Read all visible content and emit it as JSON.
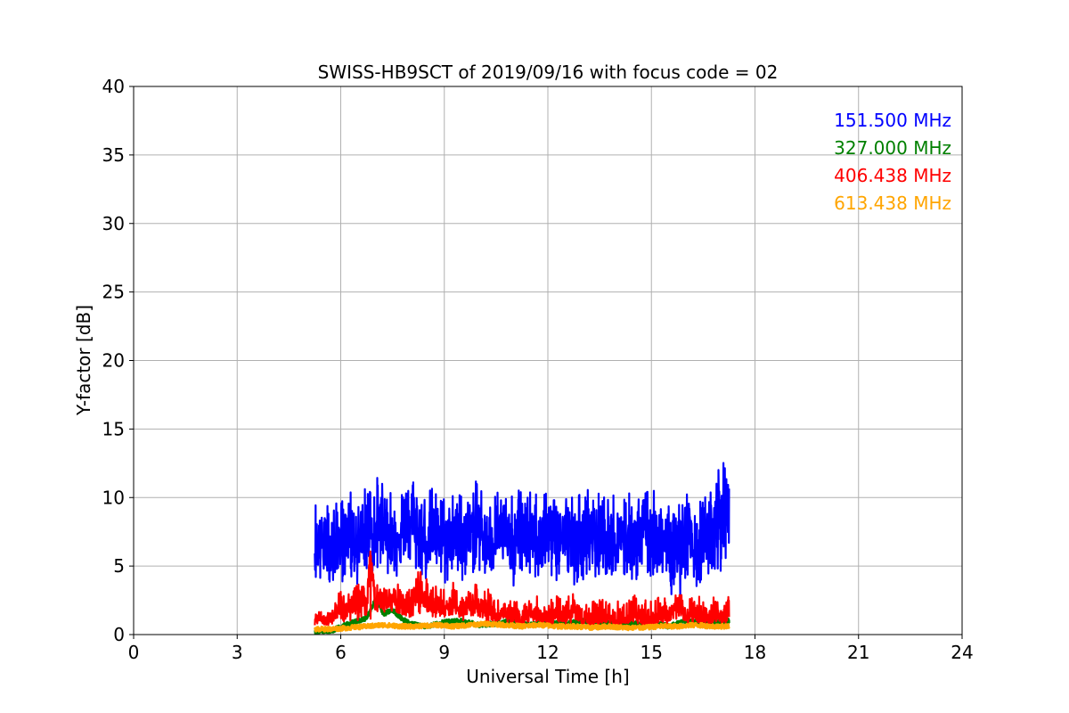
{
  "chart_data": {
    "type": "line",
    "title": "SWISS-HB9SCT of 2019/09/16 with focus code = 02",
    "xlabel": "Universal Time [h]",
    "ylabel": "Y-factor [dB]",
    "xlim": [
      0,
      24
    ],
    "ylim": [
      0,
      40
    ],
    "xticks": [
      0,
      3,
      6,
      9,
      12,
      15,
      18,
      21,
      24
    ],
    "yticks": [
      0,
      5,
      10,
      15,
      20,
      25,
      30,
      35,
      40
    ],
    "xtick_labels": [
      "0",
      "3",
      "6",
      "9",
      "12",
      "15",
      "18",
      "21",
      "24"
    ],
    "ytick_labels": [
      "0",
      "5",
      "10",
      "15",
      "20",
      "25",
      "30",
      "35",
      "40"
    ],
    "grid": true,
    "legend_position": "top-right",
    "series": [
      {
        "name": "151.500 MHz",
        "color": "#0000ff",
        "x": [
          5.25,
          5.5,
          5.75,
          6.0,
          6.25,
          6.5,
          6.75,
          7.0,
          7.25,
          7.5,
          7.75,
          8.0,
          8.25,
          8.5,
          8.75,
          9.0,
          9.25,
          9.5,
          9.75,
          10.0,
          10.25,
          10.5,
          10.75,
          11.0,
          11.25,
          11.5,
          11.75,
          12.0,
          12.25,
          12.5,
          12.75,
          13.0,
          13.25,
          13.5,
          13.75,
          14.0,
          14.25,
          14.5,
          14.75,
          15.0,
          15.25,
          15.5,
          15.75,
          16.0,
          16.25,
          16.5,
          16.75,
          17.0,
          17.25
        ],
        "y": [
          6.5,
          7.0,
          6.2,
          6.8,
          7.5,
          6.4,
          7.8,
          7.2,
          8.0,
          6.9,
          7.4,
          8.5,
          7.0,
          6.8,
          7.3,
          6.6,
          7.1,
          6.9,
          7.6,
          7.8,
          6.7,
          7.2,
          7.0,
          6.4,
          7.5,
          6.9,
          7.1,
          7.4,
          6.8,
          7.2,
          6.6,
          7.0,
          7.3,
          6.8,
          6.5,
          7.1,
          7.0,
          6.7,
          7.4,
          7.0,
          6.8,
          6.5,
          6.0,
          7.2,
          5.8,
          6.6,
          7.2,
          8.5,
          9.0
        ],
        "y_upper": [
          10.0,
          9.8,
          9.5,
          9.8,
          10.5,
          9.9,
          11.0,
          11.5,
          11.8,
          10.6,
          11.0,
          13.3,
          10.8,
          10.5,
          11.0,
          10.2,
          10.8,
          10.5,
          11.0,
          11.3,
          10.2,
          10.8,
          10.6,
          10.0,
          11.2,
          10.4,
          10.6,
          11.0,
          10.3,
          10.8,
          10.2,
          10.5,
          10.9,
          10.4,
          10.0,
          10.7,
          10.5,
          10.3,
          11.0,
          10.6,
          10.4,
          10.0,
          11.0,
          10.8,
          9.5,
          10.2,
          10.6,
          13.2,
          12.6
        ],
        "y_lower": [
          3.5,
          3.4,
          3.2,
          3.8,
          4.0,
          3.6,
          4.2,
          4.4,
          4.6,
          4.0,
          4.3,
          5.0,
          4.2,
          3.9,
          4.3,
          3.6,
          4.0,
          3.8,
          4.4,
          4.6,
          3.8,
          4.2,
          4.0,
          3.4,
          4.4,
          3.9,
          4.1,
          4.3,
          3.8,
          4.2,
          3.6,
          4.0,
          4.3,
          3.8,
          3.5,
          4.1,
          4.0,
          3.7,
          4.4,
          4.0,
          3.8,
          3.4,
          1.8,
          3.9,
          3.0,
          3.6,
          4.2,
          4.6,
          5.0
        ]
      },
      {
        "name": "327.000 MHz",
        "color": "#008000",
        "x": [
          5.25,
          5.75,
          6.25,
          6.75,
          7.0,
          7.25,
          7.5,
          7.75,
          8.0,
          8.5,
          9.0,
          9.5,
          10.0,
          10.5,
          11.0,
          11.5,
          12.0,
          12.5,
          13.0,
          13.5,
          14.0,
          14.5,
          15.0,
          15.5,
          16.0,
          16.5,
          17.0,
          17.25
        ],
        "y": [
          0.2,
          0.3,
          0.8,
          1.2,
          2.5,
          1.5,
          1.8,
          1.2,
          0.8,
          0.6,
          0.9,
          1.0,
          0.7,
          0.8,
          1.0,
          0.7,
          0.9,
          0.8,
          1.0,
          0.9,
          0.7,
          0.8,
          0.9,
          0.6,
          1.0,
          0.8,
          0.9,
          1.0
        ]
      },
      {
        "name": "406.438 MHz",
        "color": "#ff0000",
        "x": [
          5.25,
          5.5,
          5.75,
          6.0,
          6.25,
          6.5,
          6.75,
          6.85,
          7.0,
          7.25,
          7.5,
          7.75,
          8.0,
          8.25,
          8.5,
          8.75,
          9.0,
          9.25,
          9.5,
          9.75,
          10.0,
          10.25,
          10.5,
          10.75,
          11.0,
          11.25,
          11.5,
          11.75,
          12.0,
          12.25,
          12.5,
          12.75,
          13.0,
          13.25,
          13.5,
          13.75,
          14.0,
          14.25,
          14.5,
          14.75,
          15.0,
          15.25,
          15.5,
          15.75,
          16.0,
          16.25,
          16.5,
          16.75,
          17.0,
          17.25
        ],
        "y": [
          1.2,
          1.0,
          1.1,
          2.2,
          1.8,
          2.6,
          2.0,
          6.3,
          2.2,
          2.4,
          2.6,
          2.3,
          2.0,
          3.5,
          2.2,
          2.0,
          1.8,
          2.4,
          1.6,
          2.0,
          2.2,
          1.8,
          1.2,
          1.4,
          1.2,
          1.0,
          1.3,
          1.2,
          1.0,
          1.4,
          1.2,
          1.6,
          1.0,
          1.2,
          1.1,
          1.3,
          1.0,
          1.2,
          1.4,
          1.1,
          1.0,
          1.2,
          1.3,
          2.5,
          1.2,
          1.4,
          1.1,
          1.3,
          1.2,
          1.4
        ],
        "y_upper": [
          1.8,
          1.6,
          1.8,
          3.5,
          3.0,
          3.8,
          3.4,
          6.3,
          3.6,
          3.8,
          4.2,
          3.8,
          3.4,
          4.8,
          4.2,
          3.6,
          3.4,
          4.0,
          3.2,
          3.6,
          4.0,
          3.4,
          2.6,
          3.0,
          2.6,
          2.4,
          2.8,
          2.8,
          2.4,
          3.0,
          2.6,
          3.2,
          2.4,
          2.8,
          2.6,
          2.8,
          2.4,
          2.8,
          3.0,
          2.6,
          2.4,
          2.8,
          2.8,
          3.2,
          2.6,
          3.0,
          2.6,
          2.8,
          2.6,
          2.8
        ],
        "y_lower": [
          0.6,
          0.6,
          0.7,
          0.9,
          0.8,
          1.0,
          0.9,
          1.0,
          1.2,
          1.4,
          1.6,
          1.4,
          1.2,
          1.6,
          1.2,
          1.2,
          1.0,
          1.4,
          1.0,
          1.2,
          1.2,
          1.0,
          0.6,
          0.8,
          0.7,
          0.6,
          0.8,
          0.7,
          0.6,
          0.8,
          0.7,
          0.9,
          0.6,
          0.7,
          0.6,
          0.8,
          0.6,
          0.7,
          0.8,
          0.6,
          0.6,
          0.7,
          0.8,
          0.9,
          0.7,
          0.8,
          0.6,
          0.8,
          0.7,
          0.8
        ]
      },
      {
        "name": "613.438 MHz",
        "color": "#ffa500",
        "x": [
          5.25,
          5.75,
          6.25,
          6.75,
          7.25,
          7.75,
          8.25,
          8.75,
          9.25,
          9.75,
          10.25,
          10.75,
          11.25,
          11.75,
          12.25,
          12.75,
          13.25,
          13.75,
          14.25,
          14.75,
          15.25,
          15.75,
          16.25,
          16.75,
          17.25
        ],
        "y": [
          0.4,
          0.4,
          0.5,
          0.6,
          0.7,
          0.6,
          0.6,
          0.7,
          0.6,
          0.7,
          0.8,
          0.7,
          0.6,
          0.7,
          0.6,
          0.6,
          0.5,
          0.6,
          0.5,
          0.5,
          0.6,
          0.6,
          0.7,
          0.6,
          0.6
        ]
      }
    ]
  }
}
